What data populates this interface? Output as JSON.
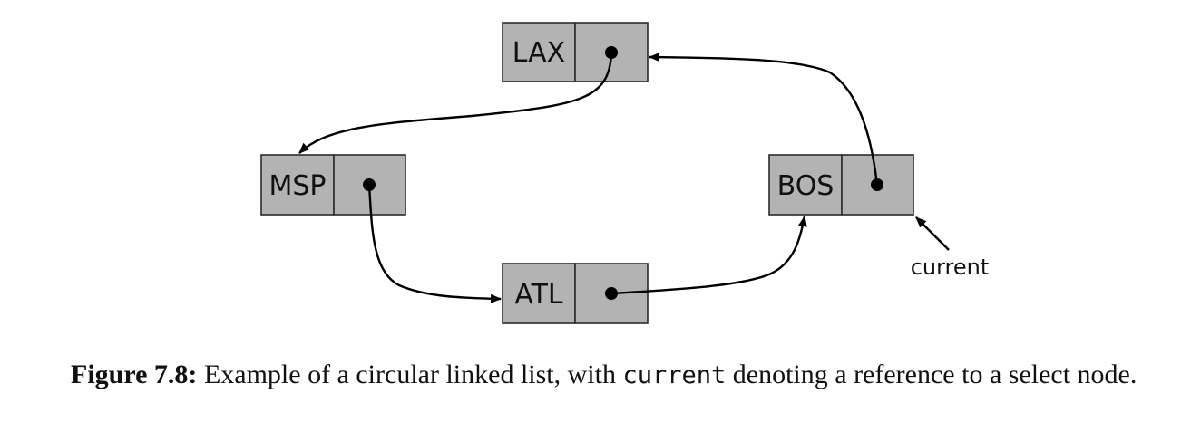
{
  "diagram": {
    "nodes": [
      {
        "id": "lax",
        "label": "LAX"
      },
      {
        "id": "msp",
        "label": "MSP"
      },
      {
        "id": "atl",
        "label": "ATL"
      },
      {
        "id": "bos",
        "label": "BOS"
      }
    ],
    "links": [
      {
        "from": "LAX",
        "to": "MSP"
      },
      {
        "from": "MSP",
        "to": "ATL"
      },
      {
        "from": "ATL",
        "to": "BOS"
      },
      {
        "from": "BOS",
        "to": "LAX"
      }
    ],
    "pointer_label": "current",
    "pointer_target": "BOS"
  },
  "caption": {
    "label": "Figure 7.8:",
    "text_before": "Example of a circular linked list, with",
    "code": "current",
    "text_after": "denoting a reference to a select node."
  },
  "colors": {
    "node_fill": "#b3b3b3",
    "node_stroke": "#2b2b2b",
    "arrow": "#000000"
  }
}
